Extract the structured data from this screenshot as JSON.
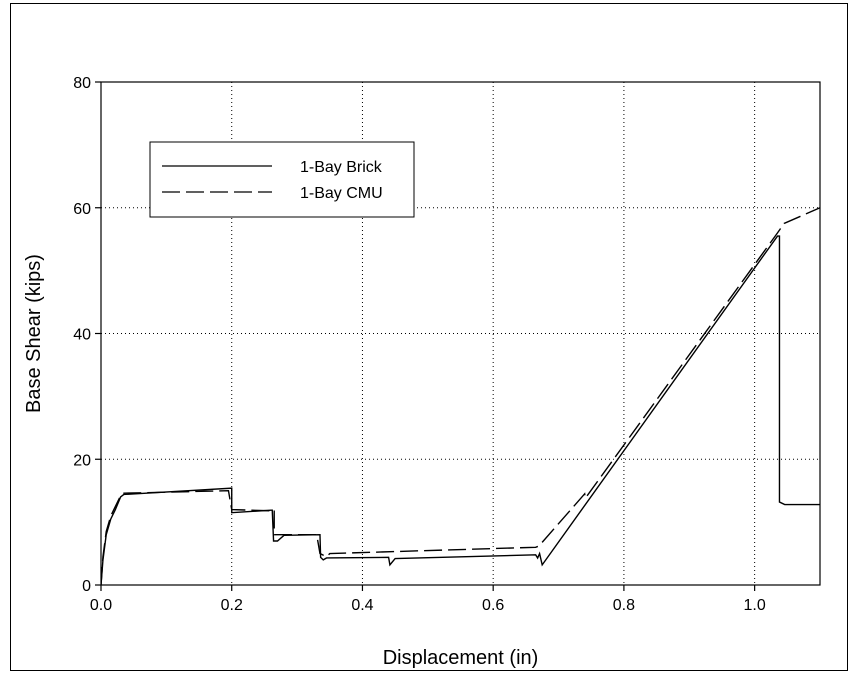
{
  "chart_data": {
    "type": "line",
    "title": "",
    "xlabel": "Displacement (in)",
    "ylabel": "Base Shear (kips)",
    "xlim": [
      0.0,
      1.1
    ],
    "ylim": [
      0,
      80
    ],
    "xticks": [
      0.0,
      0.2,
      0.4,
      0.6,
      0.8,
      1.0
    ],
    "xtick_labels": [
      "0.0",
      "0.2",
      "0.4",
      "0.6",
      "0.8",
      "1.0"
    ],
    "yticks": [
      0,
      20,
      40,
      60,
      80
    ],
    "ytick_labels": [
      "0",
      "20",
      "40",
      "60",
      "80"
    ],
    "grid": true,
    "grid_style": "dotted",
    "legend_position": "upper-left",
    "series": [
      {
        "name": "1-Bay Brick",
        "line_style": "solid",
        "color": "#000000",
        "points": [
          [
            0.0,
            0.0
          ],
          [
            0.003,
            4.0
          ],
          [
            0.008,
            8.0
          ],
          [
            0.015,
            10.5
          ],
          [
            0.022,
            12.0
          ],
          [
            0.03,
            14.0
          ],
          [
            0.035,
            14.4
          ],
          [
            0.2,
            15.4
          ],
          [
            0.2,
            11.5
          ],
          [
            0.26,
            11.9
          ],
          [
            0.262,
            11.9
          ],
          [
            0.264,
            7.0
          ],
          [
            0.27,
            7.0
          ],
          [
            0.28,
            7.9
          ],
          [
            0.335,
            8.0
          ],
          [
            0.336,
            4.4
          ],
          [
            0.34,
            4.0
          ],
          [
            0.345,
            4.3
          ],
          [
            0.44,
            4.4
          ],
          [
            0.442,
            3.2
          ],
          [
            0.45,
            4.2
          ],
          [
            0.665,
            4.8
          ],
          [
            0.668,
            4.3
          ],
          [
            0.671,
            5.0
          ],
          [
            0.675,
            3.2
          ],
          [
            1.035,
            55.5
          ],
          [
            1.038,
            55.5
          ],
          [
            1.038,
            13.2
          ],
          [
            1.046,
            12.8
          ],
          [
            1.1,
            12.8
          ]
        ]
      },
      {
        "name": "1-Bay CMU",
        "line_style": "dashed",
        "color": "#000000",
        "points": [
          [
            0.0,
            0.0
          ],
          [
            0.003,
            4.5
          ],
          [
            0.008,
            8.5
          ],
          [
            0.015,
            11.0
          ],
          [
            0.022,
            12.5
          ],
          [
            0.03,
            14.2
          ],
          [
            0.035,
            14.6
          ],
          [
            0.195,
            15.0
          ],
          [
            0.2,
            12.0
          ],
          [
            0.26,
            11.8
          ],
          [
            0.265,
            12.0
          ],
          [
            0.265,
            8.0
          ],
          [
            0.33,
            8.0
          ],
          [
            0.335,
            5.0
          ],
          [
            0.345,
            4.5
          ],
          [
            0.35,
            5.0
          ],
          [
            0.665,
            6.0
          ],
          [
            0.67,
            6.2
          ],
          [
            0.74,
            14.5
          ],
          [
            0.741,
            13.8
          ],
          [
            1.035,
            56.0
          ],
          [
            1.045,
            57.5
          ],
          [
            1.1,
            60.0
          ]
        ]
      }
    ]
  }
}
